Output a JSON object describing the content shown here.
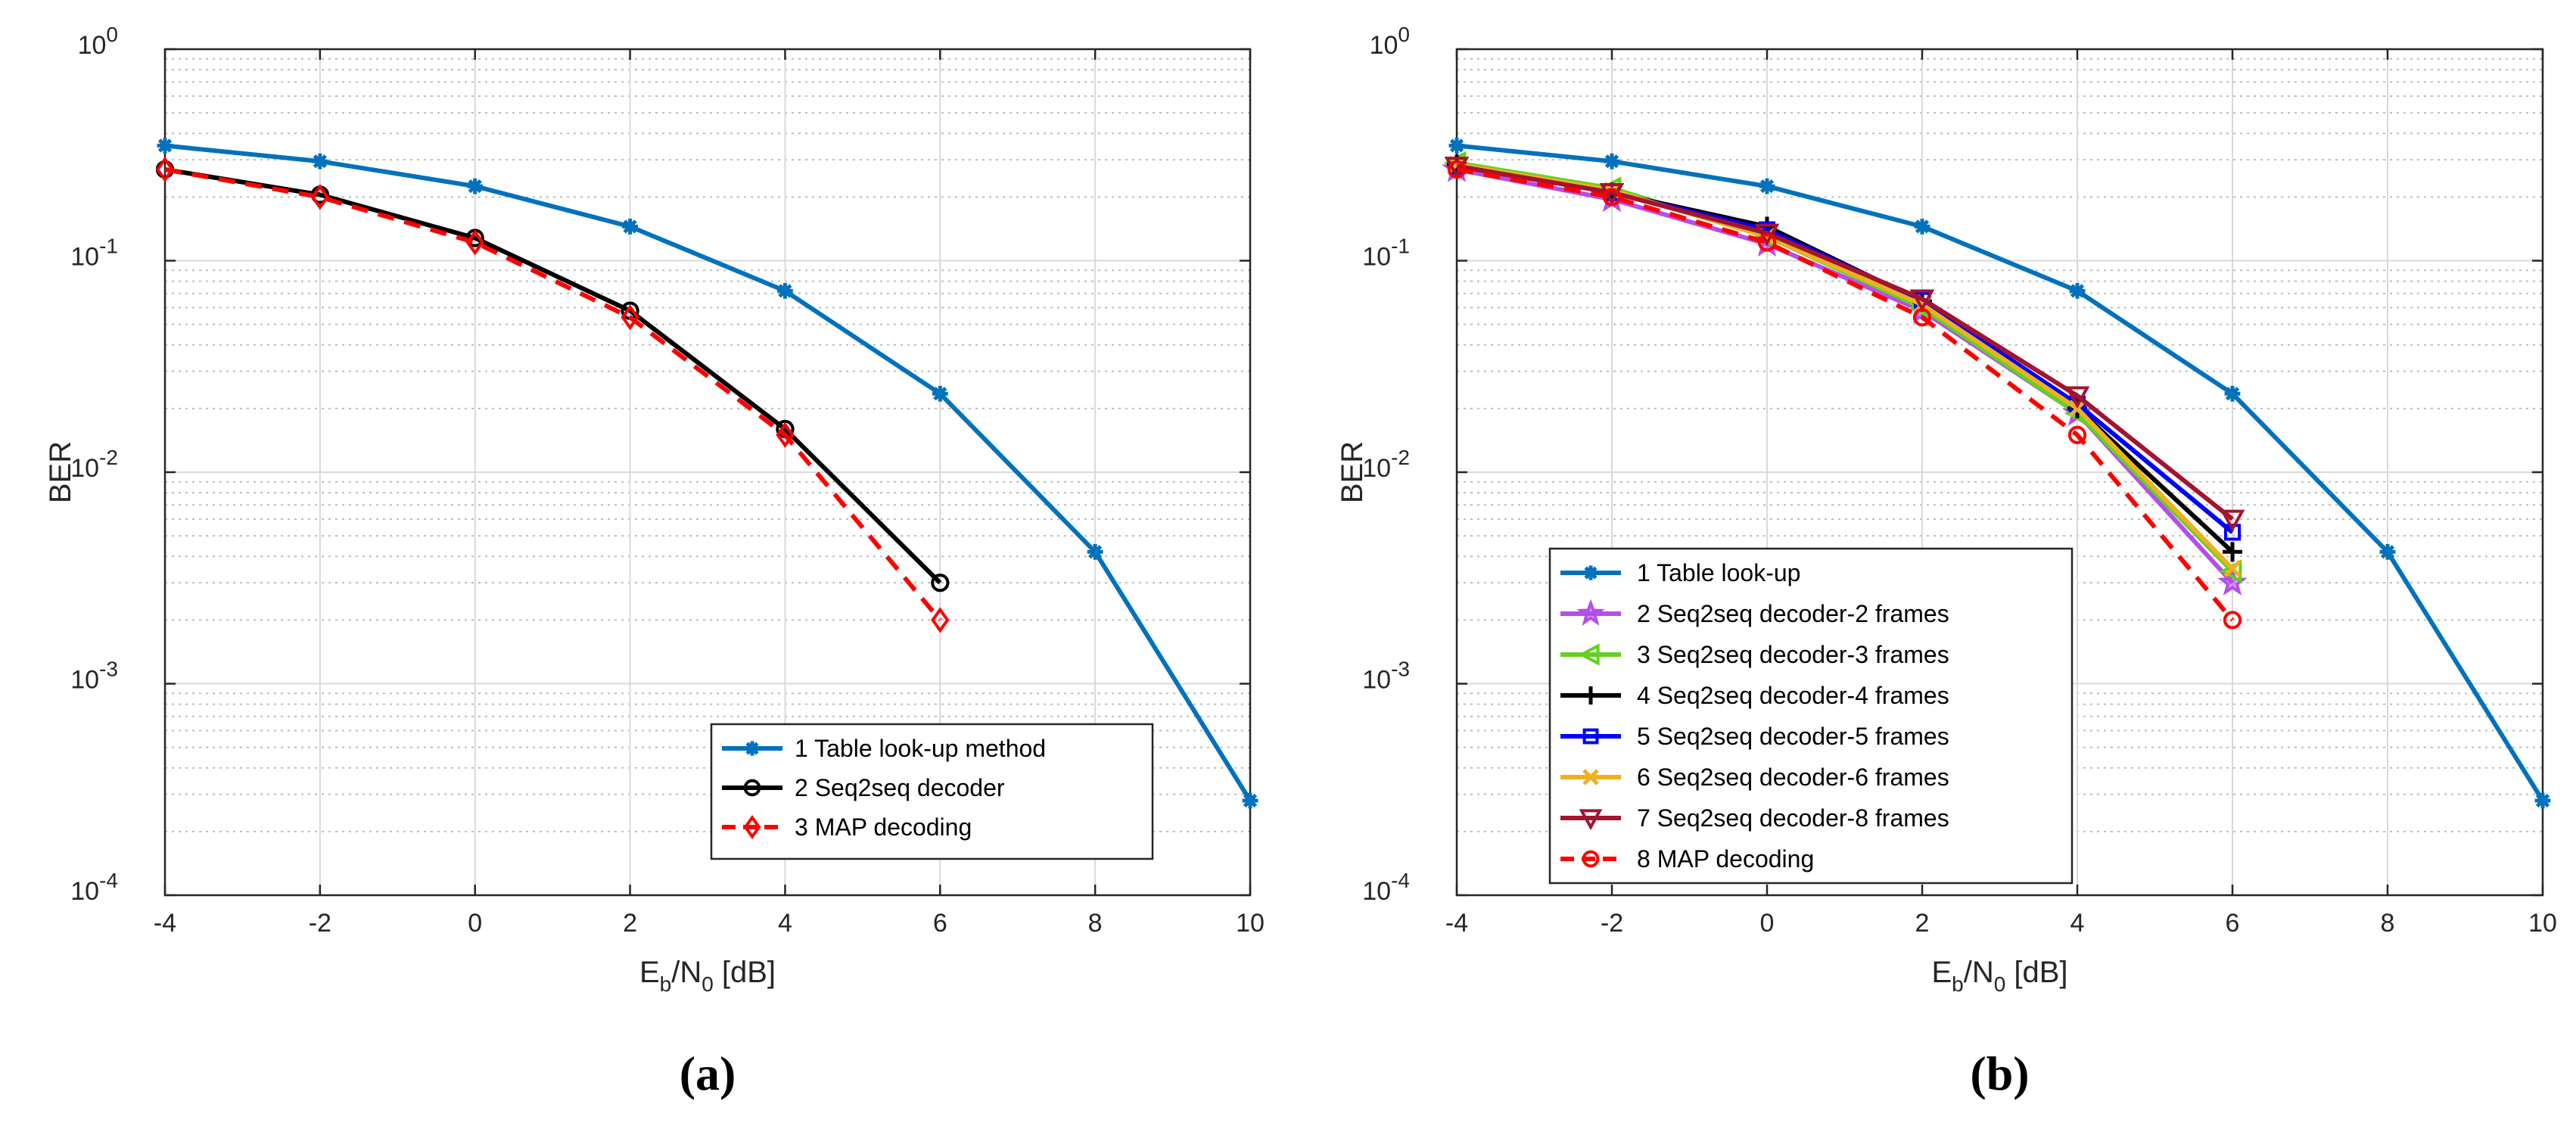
{
  "chart_data": [
    {
      "type": "line",
      "panel_label": "(a)",
      "xlabel": {
        "main": "E",
        "sub1": "b",
        "mid": "/N",
        "sub2": "0",
        "unit": " [dB]"
      },
      "ylabel": "BER",
      "yscale": "log",
      "xlim": [
        -4,
        10
      ],
      "ylim": [
        0.0001,
        1
      ],
      "grid": true,
      "legend_position": "bottom-right",
      "x_ticks": [
        "-4",
        "-2",
        "0",
        "2",
        "4",
        "6",
        "8",
        "10"
      ],
      "y_ticks": [
        {
          "base": "10",
          "exp": "-4"
        },
        {
          "base": "10",
          "exp": "-3"
        },
        {
          "base": "10",
          "exp": "-2"
        },
        {
          "base": "10",
          "exp": "-1"
        },
        {
          "base": "10",
          "exp": "0"
        }
      ],
      "series": [
        {
          "name": "1 Table look-up method",
          "color": "#0072BD",
          "marker": "asterisk",
          "dash": "solid",
          "x": [
            -4,
            -2,
            0,
            2,
            4,
            6,
            8,
            10
          ],
          "y": [
            0.35,
            0.295,
            0.225,
            0.145,
            0.072,
            0.0235,
            0.0042,
            0.00028
          ]
        },
        {
          "name": "2 Seq2seq decoder",
          "color": "#000000",
          "marker": "circle",
          "dash": "solid",
          "x": [
            -4,
            -2,
            0,
            2,
            4,
            6
          ],
          "y": [
            0.27,
            0.205,
            0.128,
            0.058,
            0.016,
            0.003
          ]
        },
        {
          "name": "3 MAP decoding",
          "color": "#FF0000",
          "marker": "diamond",
          "dash": "dashed",
          "x": [
            -4,
            -2,
            0,
            2,
            4,
            6
          ],
          "y": [
            0.27,
            0.2,
            0.122,
            0.054,
            0.015,
            0.002
          ]
        }
      ]
    },
    {
      "type": "line",
      "panel_label": "(b)",
      "xlabel": {
        "main": "E",
        "sub1": "b",
        "mid": "/N",
        "sub2": "0",
        "unit": " [dB]"
      },
      "ylabel": "BER",
      "yscale": "log",
      "xlim": [
        -4,
        10
      ],
      "ylim": [
        0.0001,
        1
      ],
      "grid": true,
      "legend_position": "bottom-left",
      "x_ticks": [
        "-4",
        "-2",
        "0",
        "2",
        "4",
        "6",
        "8",
        "10"
      ],
      "y_ticks": [
        {
          "base": "10",
          "exp": "-4"
        },
        {
          "base": "10",
          "exp": "-3"
        },
        {
          "base": "10",
          "exp": "-2"
        },
        {
          "base": "10",
          "exp": "-1"
        },
        {
          "base": "10",
          "exp": "0"
        }
      ],
      "series": [
        {
          "name": "1 Table look-up",
          "color": "#0072BD",
          "marker": "asterisk",
          "dash": "solid",
          "x": [
            -4,
            -2,
            0,
            2,
            4,
            6,
            8,
            10
          ],
          "y": [
            0.35,
            0.295,
            0.225,
            0.145,
            0.072,
            0.0235,
            0.0042,
            0.00028
          ]
        },
        {
          "name": "2 Seq2seq decoder-2 frames",
          "color": "#B54EEB",
          "marker": "star",
          "dash": "solid",
          "x": [
            -4,
            -2,
            0,
            2,
            4,
            6
          ],
          "y": [
            0.27,
            0.195,
            0.12,
            0.058,
            0.019,
            0.003
          ]
        },
        {
          "name": "3 Seq2seq decoder-3 frames",
          "color": "#5FD31F",
          "marker": "triangle-left",
          "dash": "solid",
          "x": [
            -4,
            -2,
            0,
            2,
            4,
            6
          ],
          "y": [
            0.29,
            0.22,
            0.13,
            0.06,
            0.019,
            0.0034
          ]
        },
        {
          "name": "4 Seq2seq decoder-4 frames",
          "color": "#000000",
          "marker": "plus",
          "dash": "solid",
          "x": [
            -4,
            -2,
            0,
            2,
            4,
            6
          ],
          "y": [
            0.285,
            0.21,
            0.145,
            0.064,
            0.02,
            0.0042
          ]
        },
        {
          "name": "5 Seq2seq decoder-5 frames",
          "color": "#0000FF",
          "marker": "square",
          "dash": "solid",
          "x": [
            -4,
            -2,
            0,
            2,
            4,
            6
          ],
          "y": [
            0.28,
            0.21,
            0.14,
            0.065,
            0.021,
            0.0052
          ]
        },
        {
          "name": "6 Seq2seq decoder-6 frames",
          "color": "#EDB120",
          "marker": "x",
          "dash": "solid",
          "x": [
            -4,
            -2,
            0,
            2,
            4,
            6
          ],
          "y": [
            0.285,
            0.215,
            0.13,
            0.062,
            0.02,
            0.0035
          ]
        },
        {
          "name": "7 Seq2seq decoder-8 frames",
          "color": "#A2142F",
          "marker": "triangle-down",
          "dash": "solid",
          "x": [
            -4,
            -2,
            0,
            2,
            4,
            6
          ],
          "y": [
            0.28,
            0.21,
            0.135,
            0.066,
            0.023,
            0.006
          ]
        },
        {
          "name": "8 MAP decoding",
          "color": "#FF0000",
          "marker": "circle",
          "dash": "dashed",
          "x": [
            -4,
            -2,
            0,
            2,
            4,
            6
          ],
          "y": [
            0.27,
            0.2,
            0.122,
            0.054,
            0.015,
            0.002
          ]
        }
      ]
    }
  ]
}
